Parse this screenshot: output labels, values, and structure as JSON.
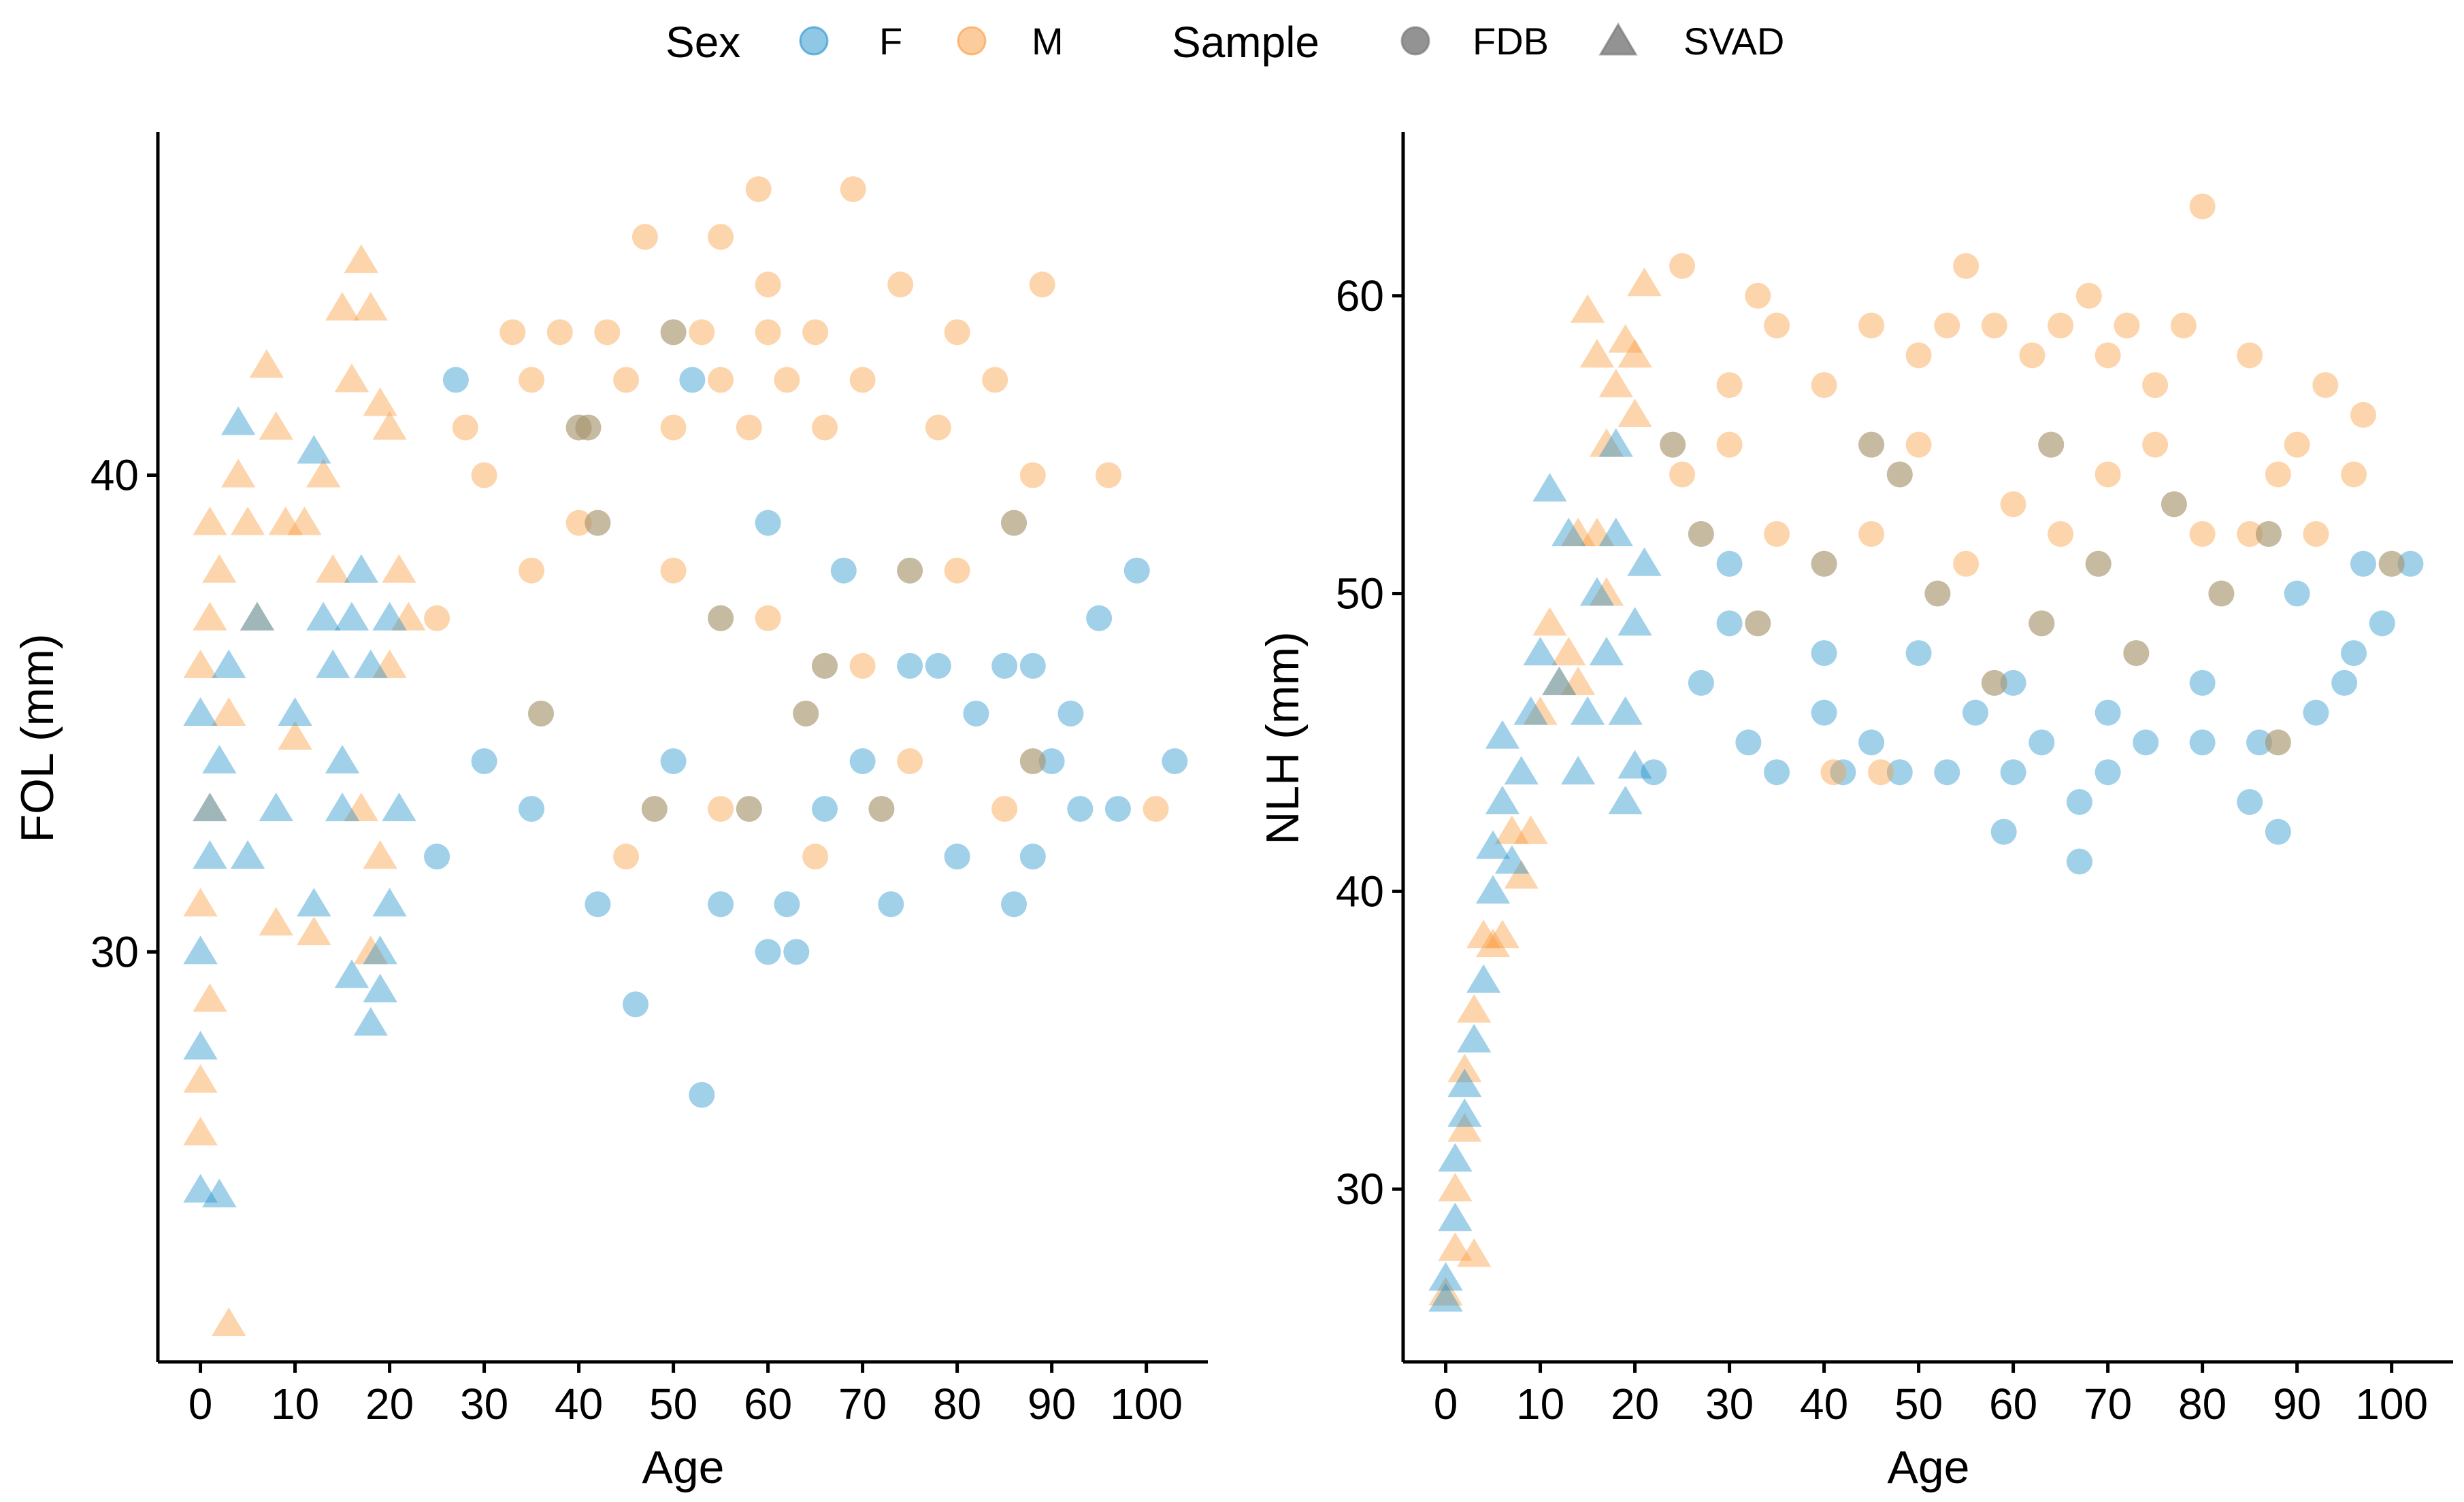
{
  "legend": {
    "sex_title": "Sex",
    "sex_items": [
      {
        "label": "F",
        "color": "#1f8fcb"
      },
      {
        "label": "M",
        "color": "#fb9a3c"
      }
    ],
    "sample_title": "Sample",
    "sample_items": [
      {
        "label": "FDB",
        "shape": "circle"
      },
      {
        "label": "SVAD",
        "shape": "triangle"
      }
    ],
    "neutral_color": "#6f6f6f"
  },
  "colors": {
    "F": "#1f8fcb",
    "M": "#fb9a3c",
    "alpha": 0.42
  },
  "chart_data": [
    {
      "type": "scatter",
      "id": "fol",
      "title": "",
      "xlabel": "Age",
      "ylabel": "FOL (mm)",
      "xlim": [
        -4.5,
        106.5
      ],
      "ylim": [
        21.4,
        47.2
      ],
      "xticks": [
        0,
        10,
        20,
        30,
        40,
        50,
        60,
        70,
        80,
        90,
        100
      ],
      "yticks": [
        30,
        40
      ],
      "grid": false,
      "summary": "FDB (circles) adults aged about 22-102 measured in whole mm (approx. 27-46 mm, dense 33-41); SVAD (triangles) juveniles aged 0-21 spanning approx. 22-44.5 mm. Representative points listed below.",
      "svad": {
        "F": [
          [
            0,
            25
          ],
          [
            2,
            24.9
          ],
          [
            0,
            28
          ],
          [
            0,
            30
          ],
          [
            1,
            32
          ],
          [
            1,
            33
          ],
          [
            2,
            34
          ],
          [
            0,
            35
          ],
          [
            3,
            36
          ],
          [
            4,
            41.1
          ],
          [
            5,
            32
          ],
          [
            6,
            37
          ],
          [
            8,
            33
          ],
          [
            10,
            35
          ],
          [
            12,
            31
          ],
          [
            14,
            36
          ],
          [
            15,
            34
          ],
          [
            16,
            37
          ],
          [
            17,
            38
          ],
          [
            18,
            36
          ],
          [
            19,
            30
          ],
          [
            20,
            31
          ],
          [
            21,
            33
          ],
          [
            18,
            28.5
          ],
          [
            16,
            29.5
          ],
          [
            19,
            29.2
          ],
          [
            20,
            37
          ],
          [
            12,
            40.5
          ],
          [
            15,
            33
          ],
          [
            13,
            37
          ]
        ],
        "M": [
          [
            3,
            22.2
          ],
          [
            0,
            26.2
          ],
          [
            0,
            27.3
          ],
          [
            1,
            29
          ],
          [
            0,
            31
          ],
          [
            1,
            33
          ],
          [
            0,
            36
          ],
          [
            1,
            37
          ],
          [
            1,
            39
          ],
          [
            2,
            38
          ],
          [
            3,
            35
          ],
          [
            4,
            40
          ],
          [
            5,
            39
          ],
          [
            6,
            37
          ],
          [
            7,
            42.3
          ],
          [
            8,
            41
          ],
          [
            9,
            39
          ],
          [
            10,
            34.5
          ],
          [
            11,
            39
          ],
          [
            13,
            40
          ],
          [
            14,
            38
          ],
          [
            15,
            43.5
          ],
          [
            16,
            42
          ],
          [
            17,
            44.5
          ],
          [
            18,
            43.5
          ],
          [
            19,
            41.5
          ],
          [
            20,
            41
          ],
          [
            21,
            38
          ],
          [
            17,
            33
          ],
          [
            18,
            30
          ],
          [
            19,
            32
          ],
          [
            20,
            36
          ],
          [
            22,
            37
          ],
          [
            8,
            30.6
          ],
          [
            12,
            30.4
          ]
        ]
      },
      "fdb": {
        "F": [
          [
            27,
            42
          ],
          [
            40,
            41
          ],
          [
            52,
            42
          ],
          [
            60,
            39
          ],
          [
            68,
            38
          ],
          [
            75,
            36
          ],
          [
            85,
            36
          ],
          [
            90,
            34
          ],
          [
            92,
            35
          ],
          [
            95,
            37
          ],
          [
            97,
            33
          ],
          [
            99,
            38
          ],
          [
            103,
            34
          ],
          [
            25,
            32
          ],
          [
            42,
            31
          ],
          [
            46,
            28.9
          ],
          [
            53,
            27
          ],
          [
            55,
            31
          ],
          [
            60,
            30
          ],
          [
            63,
            30
          ],
          [
            62,
            31
          ],
          [
            73,
            31
          ],
          [
            80,
            32
          ],
          [
            86,
            31
          ],
          [
            88,
            32
          ],
          [
            30,
            34
          ],
          [
            35,
            33
          ],
          [
            50,
            34
          ],
          [
            66,
            33
          ],
          [
            70,
            34
          ],
          [
            78,
            36
          ],
          [
            82,
            35
          ],
          [
            88,
            36
          ],
          [
            93,
            33
          ]
        ],
        "M": [
          [
            47,
            45
          ],
          [
            55,
            45
          ],
          [
            59,
            46
          ],
          [
            69,
            46
          ],
          [
            60,
            44
          ],
          [
            74,
            44
          ],
          [
            89,
            44
          ],
          [
            33,
            43
          ],
          [
            38,
            43
          ],
          [
            43,
            43
          ],
          [
            53,
            43
          ],
          [
            60,
            43
          ],
          [
            65,
            43
          ],
          [
            80,
            43
          ],
          [
            35,
            42
          ],
          [
            45,
            42
          ],
          [
            55,
            42
          ],
          [
            62,
            42
          ],
          [
            70,
            42
          ],
          [
            84,
            42
          ],
          [
            28,
            41
          ],
          [
            40,
            41
          ],
          [
            50,
            41
          ],
          [
            58,
            41
          ],
          [
            66,
            41
          ],
          [
            78,
            41
          ],
          [
            88,
            40
          ],
          [
            96,
            40
          ],
          [
            101,
            33
          ],
          [
            30,
            40
          ],
          [
            40,
            39
          ],
          [
            50,
            38
          ],
          [
            60,
            37
          ],
          [
            70,
            36
          ],
          [
            80,
            38
          ],
          [
            45,
            32
          ],
          [
            55,
            33
          ],
          [
            65,
            32
          ],
          [
            75,
            34
          ],
          [
            85,
            33
          ],
          [
            35,
            38
          ],
          [
            25,
            37
          ]
        ]
      },
      "fdb_overlap": [
        [
          42,
          39
        ],
        [
          55,
          37
        ],
        [
          64,
          35
        ],
        [
          75,
          38
        ],
        [
          88,
          34
        ],
        [
          48,
          33
        ],
        [
          66,
          36
        ],
        [
          86,
          39
        ],
        [
          50,
          43
        ],
        [
          58,
          33
        ],
        [
          72,
          33
        ],
        [
          41,
          41
        ],
        [
          36,
          35
        ]
      ]
    },
    {
      "type": "scatter",
      "id": "nlh",
      "title": "",
      "xlabel": "Age",
      "ylabel": "NLH (mm)",
      "xlim": [
        -4.5,
        106.5
      ],
      "ylim": [
        24.2,
        65.5
      ],
      "xticks": [
        0,
        10,
        20,
        30,
        40,
        50,
        60,
        70,
        80,
        90,
        100
      ],
      "yticks": [
        30,
        40,
        50,
        60
      ],
      "grid": false,
      "summary": "SVAD juveniles rise steeply from approx. 26 mm at age 0 to approx. 60 mm near age 20; FDB adults aged about 22-102 mostly 44-58 mm with extremes 41-63 mm.",
      "svad": {
        "F": [
          [
            0,
            26.3
          ],
          [
            0,
            27
          ],
          [
            1,
            29
          ],
          [
            1,
            31
          ],
          [
            2,
            32.5
          ],
          [
            2,
            33.5
          ],
          [
            3,
            35
          ],
          [
            4,
            37
          ],
          [
            5,
            40
          ],
          [
            5,
            41.5
          ],
          [
            6,
            43
          ],
          [
            6,
            45.2
          ],
          [
            7,
            41
          ],
          [
            8,
            44
          ],
          [
            9,
            46
          ],
          [
            10,
            48
          ],
          [
            11,
            53.5
          ],
          [
            12,
            47
          ],
          [
            13,
            52
          ],
          [
            14,
            44
          ],
          [
            15,
            46
          ],
          [
            16,
            50
          ],
          [
            17,
            48
          ],
          [
            18,
            52
          ],
          [
            19,
            46
          ],
          [
            19,
            43
          ],
          [
            20,
            44.2
          ],
          [
            20,
            49
          ],
          [
            21,
            51
          ],
          [
            18,
            55
          ]
        ],
        "M": [
          [
            0,
            26.5
          ],
          [
            1,
            28
          ],
          [
            1,
            30
          ],
          [
            2,
            32
          ],
          [
            2,
            34
          ],
          [
            3,
            36
          ],
          [
            3,
            27.8
          ],
          [
            4,
            38.5
          ],
          [
            5,
            38.2
          ],
          [
            6,
            38.5
          ],
          [
            7,
            42
          ],
          [
            8,
            40.5
          ],
          [
            9,
            42
          ],
          [
            10,
            46
          ],
          [
            11,
            49
          ],
          [
            12,
            47
          ],
          [
            13,
            48
          ],
          [
            14,
            52
          ],
          [
            15,
            59.5
          ],
          [
            16,
            58
          ],
          [
            17,
            55
          ],
          [
            18,
            57
          ],
          [
            19,
            58.5
          ],
          [
            20,
            58
          ],
          [
            21,
            60.4
          ],
          [
            20,
            56
          ],
          [
            17,
            50
          ],
          [
            16,
            52
          ],
          [
            14,
            47
          ]
        ]
      },
      "fdb": {
        "F": [
          [
            22,
            44
          ],
          [
            27,
            47
          ],
          [
            30,
            51
          ],
          [
            32,
            45
          ],
          [
            35,
            44
          ],
          [
            40,
            46
          ],
          [
            42,
            44
          ],
          [
            45,
            45
          ],
          [
            48,
            44
          ],
          [
            53,
            44
          ],
          [
            56,
            46
          ],
          [
            59,
            42
          ],
          [
            60,
            44
          ],
          [
            63,
            45
          ],
          [
            67,
            41
          ],
          [
            67,
            43
          ],
          [
            70,
            44
          ],
          [
            74,
            45
          ],
          [
            80,
            45
          ],
          [
            85,
            43
          ],
          [
            86,
            45
          ],
          [
            88,
            42
          ],
          [
            92,
            46
          ],
          [
            95,
            47
          ],
          [
            97,
            51
          ],
          [
            99,
            49
          ],
          [
            102,
            51
          ],
          [
            100,
            51
          ],
          [
            96,
            48
          ],
          [
            90,
            50
          ],
          [
            80,
            47
          ],
          [
            70,
            46
          ],
          [
            60,
            47
          ],
          [
            50,
            48
          ],
          [
            40,
            48
          ],
          [
            30,
            49
          ]
        ],
        "M": [
          [
            25,
            61
          ],
          [
            33,
            60
          ],
          [
            68,
            60
          ],
          [
            80,
            63
          ],
          [
            55,
            61
          ],
          [
            25,
            54
          ],
          [
            30,
            57
          ],
          [
            35,
            59
          ],
          [
            40,
            57
          ],
          [
            45,
            59
          ],
          [
            50,
            58
          ],
          [
            53,
            59
          ],
          [
            58,
            59
          ],
          [
            62,
            58
          ],
          [
            65,
            59
          ],
          [
            70,
            58
          ],
          [
            72,
            59
          ],
          [
            75,
            57
          ],
          [
            78,
            59
          ],
          [
            85,
            58
          ],
          [
            93,
            57
          ],
          [
            97,
            56
          ],
          [
            96,
            54
          ],
          [
            100,
            51
          ],
          [
            88,
            54
          ],
          [
            90,
            55
          ],
          [
            92,
            52
          ],
          [
            46,
            44
          ],
          [
            41,
            44
          ],
          [
            50,
            55
          ],
          [
            60,
            53
          ],
          [
            70,
            54
          ],
          [
            80,
            52
          ],
          [
            45,
            52
          ],
          [
            55,
            51
          ],
          [
            65,
            52
          ],
          [
            75,
            55
          ],
          [
            85,
            52
          ],
          [
            30,
            55
          ],
          [
            35,
            52
          ]
        ]
      },
      "fdb_overlap": [
        [
          24,
          55
        ],
        [
          27,
          52
        ],
        [
          33,
          49
        ],
        [
          40,
          51
        ],
        [
          45,
          55
        ],
        [
          52,
          50
        ],
        [
          58,
          47
        ],
        [
          63,
          49
        ],
        [
          69,
          51
        ],
        [
          77,
          53
        ],
        [
          82,
          50
        ],
        [
          87,
          52
        ],
        [
          88,
          45
        ],
        [
          64,
          55
        ],
        [
          73,
          48
        ],
        [
          48,
          54
        ]
      ]
    }
  ]
}
